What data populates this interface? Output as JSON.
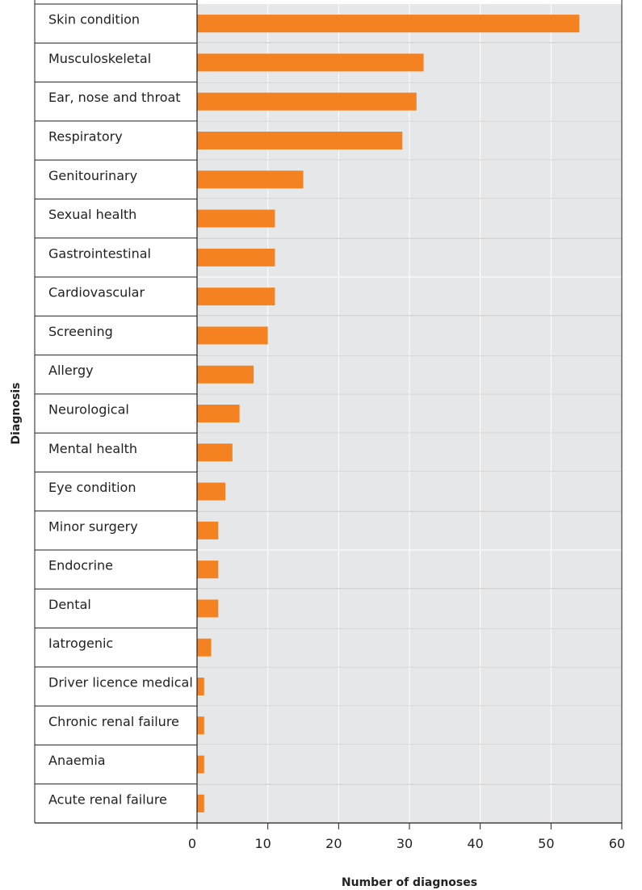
{
  "chart_data": {
    "type": "bar",
    "orientation": "horizontal",
    "title": "",
    "xlabel": "Number of diagnoses",
    "ylabel": "Diagnosis",
    "xlim": [
      0,
      60
    ],
    "xticks": [
      0,
      10,
      20,
      30,
      40,
      50,
      60
    ],
    "grid": true,
    "legend": "none",
    "categories": [
      "Skin condition",
      "Musculoskeletal",
      "Ear, nose and throat",
      "Respiratory",
      "Genitourinary",
      "Sexual health",
      "Gastrointestinal",
      "Cardiovascular",
      "Screening",
      "Allergy",
      "Neurological",
      "Mental health",
      "Eye condition",
      "Minor surgery",
      "Endocrine",
      "Dental",
      "Iatrogenic",
      "Driver licence medical",
      "Chronic renal failure",
      "Anaemia",
      "Acute renal failure"
    ],
    "values": [
      54,
      32,
      31,
      29,
      15,
      11,
      11,
      11,
      10,
      8,
      6,
      5,
      4,
      3,
      3,
      3,
      2,
      1,
      1,
      1,
      1
    ],
    "colors": {
      "bar": "#f58220",
      "plot_background": "#e6e7e8",
      "grid": "#ffffff",
      "axis": "#231f20"
    }
  }
}
